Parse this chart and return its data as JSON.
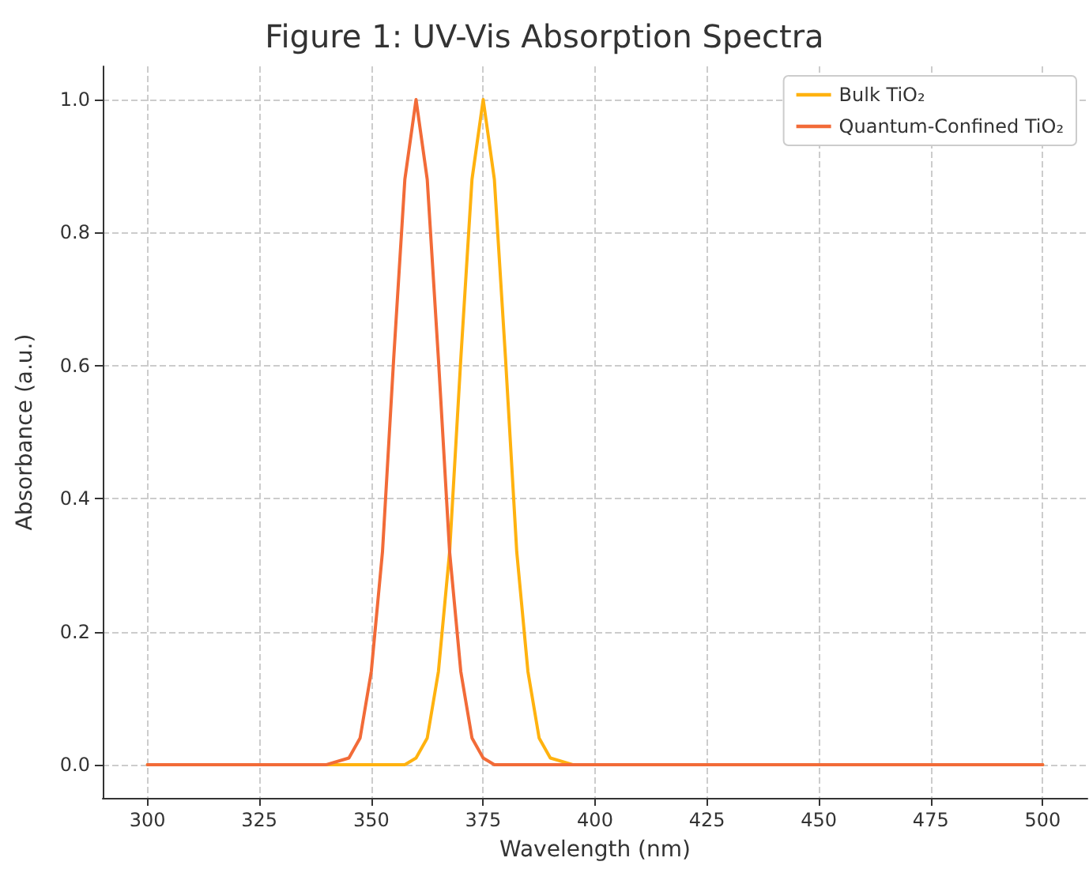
{
  "chart_data": {
    "type": "line",
    "title": "Figure 1: UV-Vis Absorption Spectra",
    "xlabel": "Wavelength (nm)",
    "ylabel": "Absorbance (a.u.)",
    "x": [
      300,
      340,
      345,
      347.5,
      350,
      352.5,
      355,
      357.5,
      360,
      362.5,
      365,
      367.5,
      370,
      372.5,
      375,
      377.5,
      380,
      382.5,
      385,
      387.5,
      390,
      395,
      500
    ],
    "series": [
      {
        "name": "Bulk TiO₂",
        "color": "#ffb20f",
        "values": [
          0,
          0,
          0,
          0,
          0,
          0,
          0,
          0,
          0.01,
          0.04,
          0.14,
          0.32,
          0.61,
          0.88,
          1,
          0.88,
          0.61,
          0.32,
          0.14,
          0.04,
          0.01,
          0,
          0
        ]
      },
      {
        "name": "Quantum-Confined TiO₂",
        "color": "#f26b38",
        "values": [
          0,
          0,
          0.01,
          0.04,
          0.14,
          0.32,
          0.61,
          0.88,
          1,
          0.88,
          0.61,
          0.32,
          0.14,
          0.04,
          0.01,
          0,
          0,
          0,
          0,
          0,
          0,
          0,
          0
        ]
      }
    ],
    "xlim": [
      290,
      510
    ],
    "xticks": [
      300,
      325,
      350,
      375,
      400,
      425,
      450,
      475,
      500
    ],
    "ylim": [
      -0.05,
      1.05
    ],
    "yticks": [
      {
        "value": 0,
        "label": "0.0"
      },
      {
        "value": 0.2,
        "label": "0.2"
      },
      {
        "value": 0.4,
        "label": "0.4"
      },
      {
        "value": 0.6,
        "label": "0.6"
      },
      {
        "value": 0.8,
        "label": "0.8"
      },
      {
        "value": 1,
        "label": "1.0"
      }
    ],
    "grid": true,
    "legend": "top right",
    "marker": "none",
    "line_style": "solid"
  }
}
